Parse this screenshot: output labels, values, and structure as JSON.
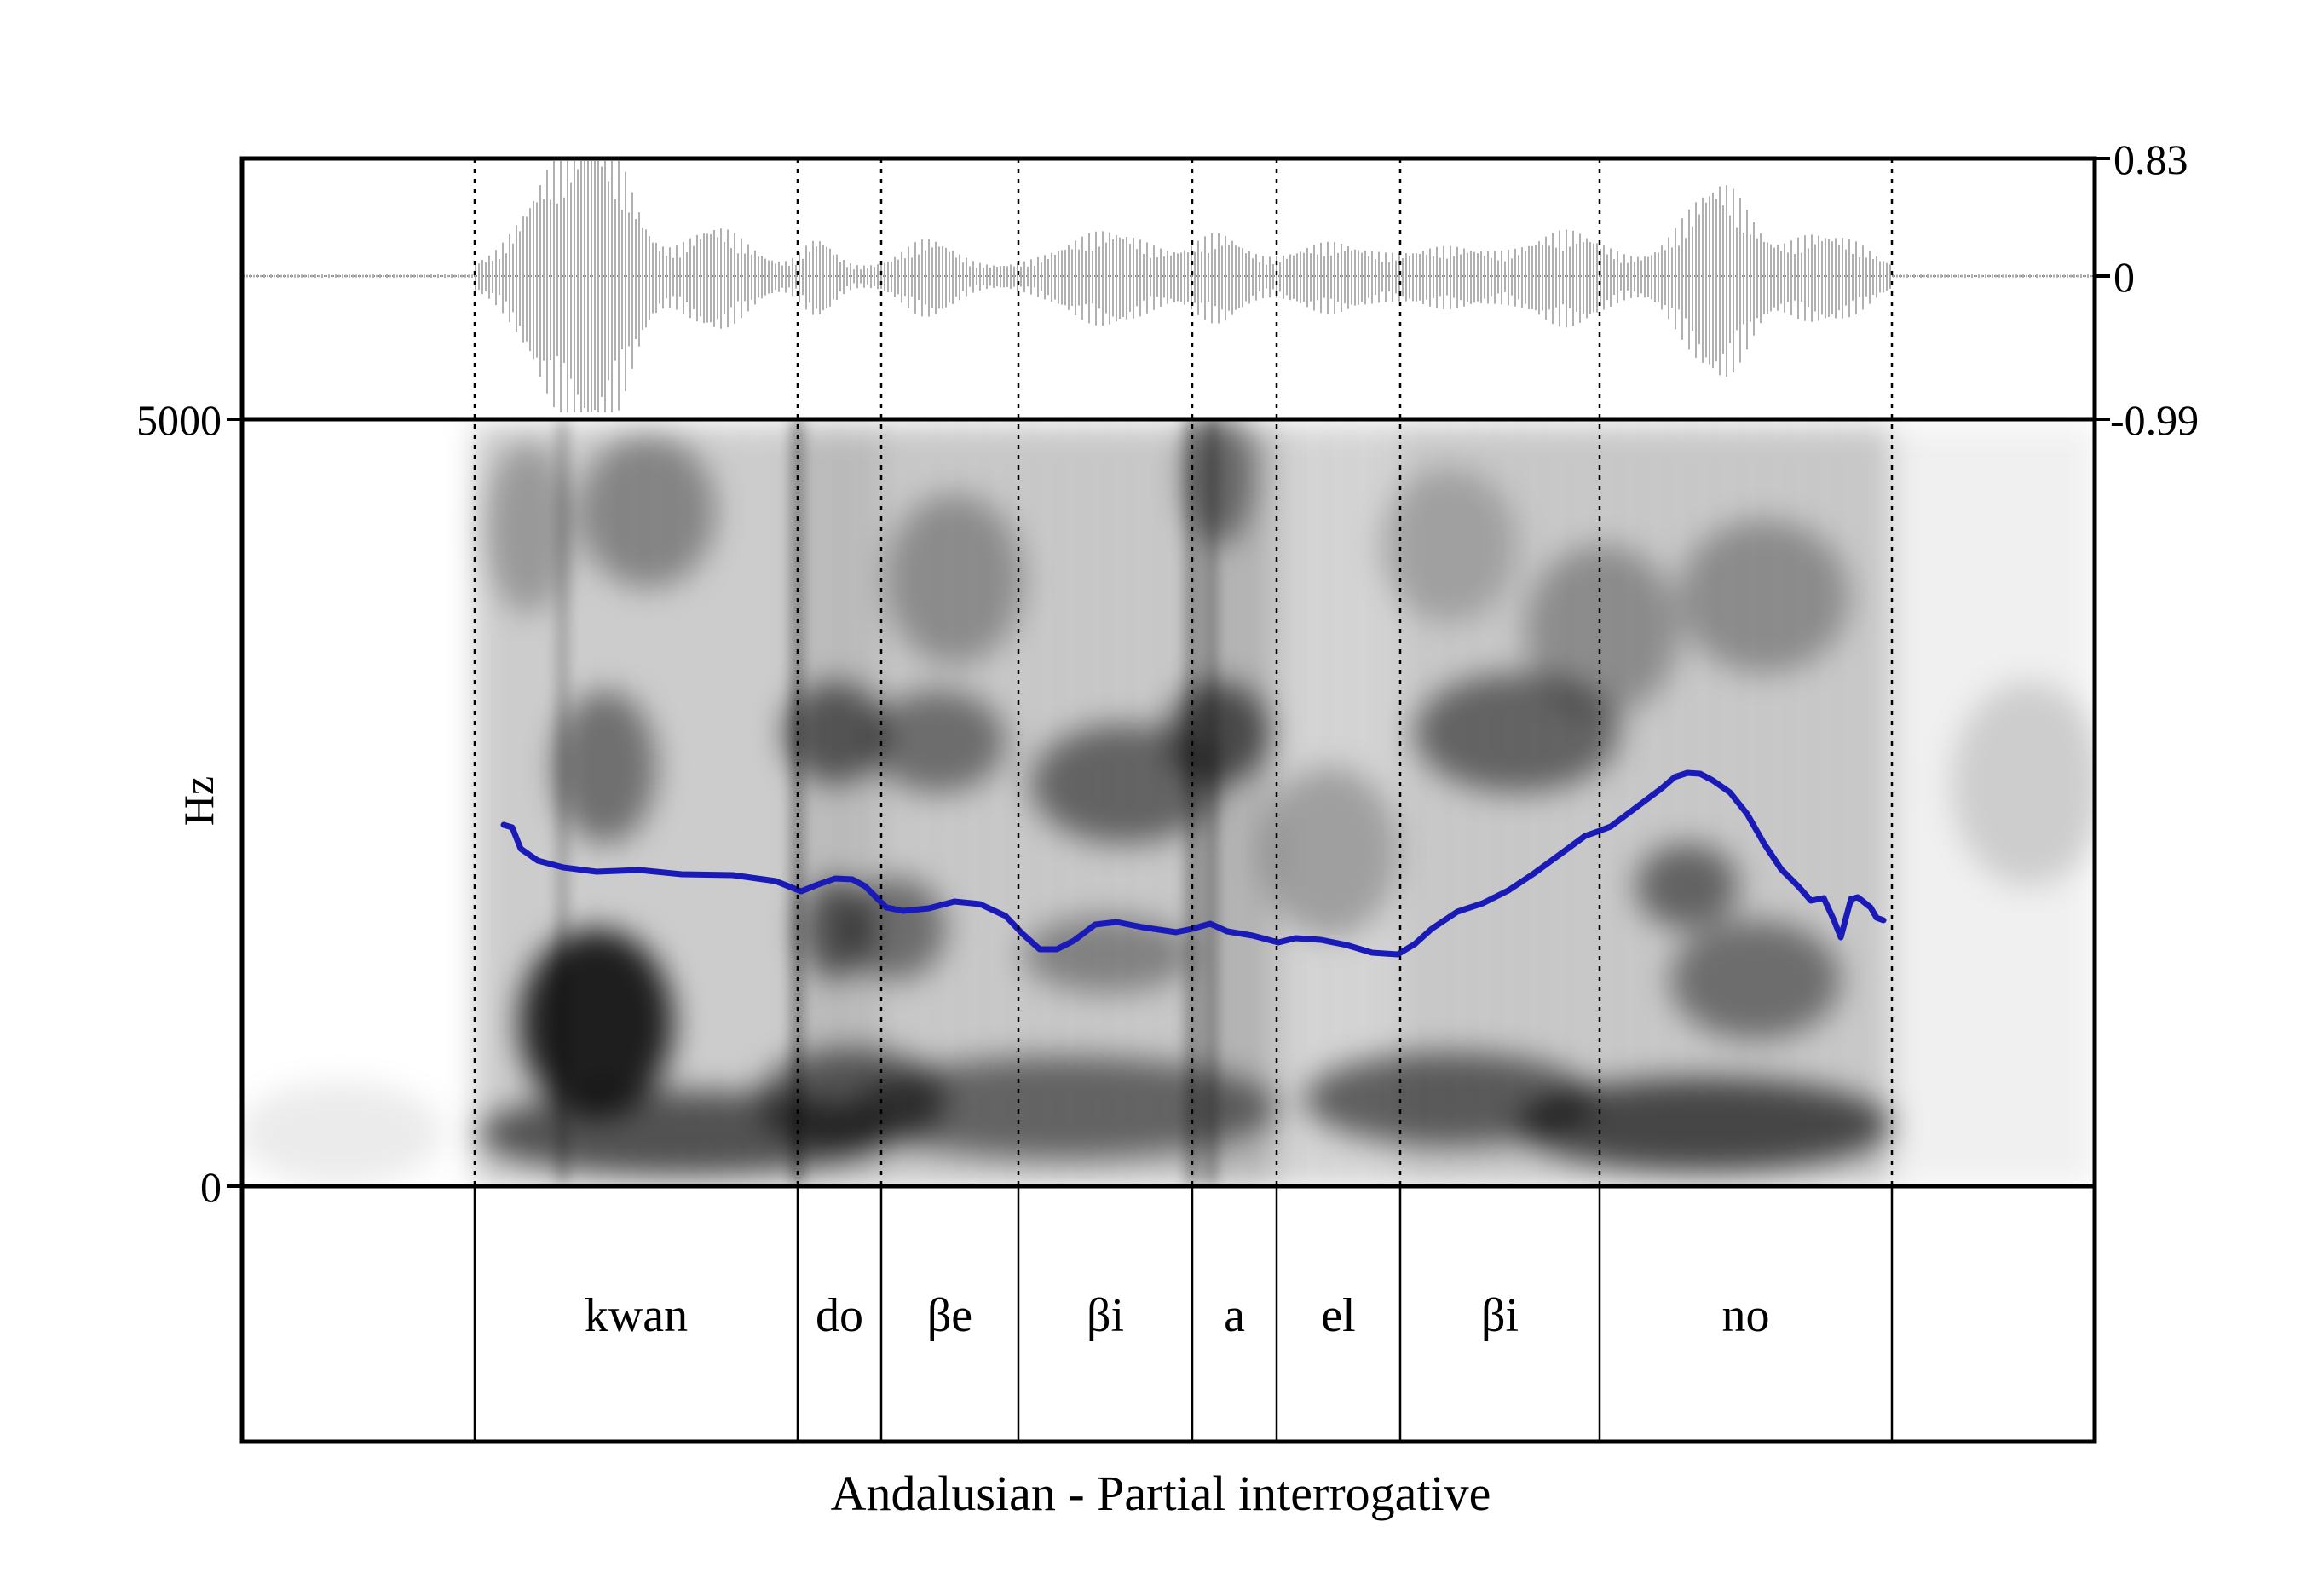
{
  "waveform": {
    "axis_labels": {
      "top": "0.83",
      "mid": "0",
      "bottom": "-0.99"
    }
  },
  "spectrogram": {
    "y_axis_label": "Hz",
    "y_max_label": "5000",
    "y_min_label": "0"
  },
  "tier": {
    "segments": [
      "kwan",
      "do",
      "βe",
      "βi",
      "a",
      "el",
      "βi",
      "no"
    ]
  },
  "caption": "Andalusian - Partial interrogative",
  "colors": {
    "pitch": "#1a1ab8",
    "waveform": "#b0b0b0",
    "frame": "#000000"
  }
}
